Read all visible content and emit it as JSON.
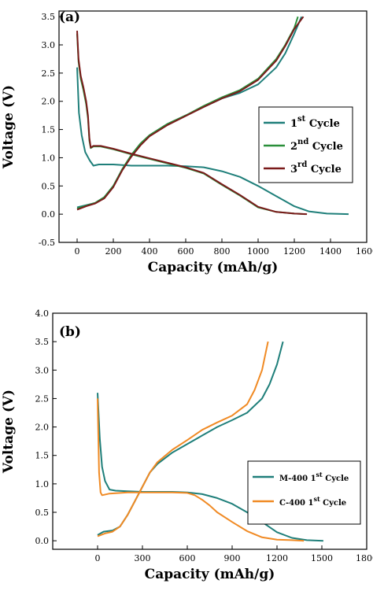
{
  "chart_data": [
    {
      "type": "line",
      "panel_label": "(a)",
      "xlabel": "Capacity (mAh/g)",
      "ylabel": "Voltage (V)",
      "xlim": [
        -100,
        1600
      ],
      "ylim": [
        -0.5,
        3.6
      ],
      "xticks": [
        "0",
        "200",
        "400",
        "600",
        "800",
        "1000",
        "1200",
        "1400",
        "1600"
      ],
      "yticks": [
        "-0.5",
        "0.0",
        "0.5",
        "1.0",
        "1.5",
        "2.0",
        "2.5",
        "3.0",
        "3.5"
      ],
      "legend_position": "center-right",
      "series": [
        {
          "name": "1st Cycle",
          "label_base": "1",
          "label_sup": "st",
          "label_rest": "Cycle",
          "color": "#1f7f7a",
          "discharge": [
            [
              0,
              2.6
            ],
            [
              10,
              1.8
            ],
            [
              25,
              1.4
            ],
            [
              45,
              1.1
            ],
            [
              70,
              0.95
            ],
            [
              90,
              0.86
            ],
            [
              120,
              0.88
            ],
            [
              200,
              0.88
            ],
            [
              300,
              0.86
            ],
            [
              400,
              0.86
            ],
            [
              500,
              0.86
            ],
            [
              600,
              0.85
            ],
            [
              700,
              0.83
            ],
            [
              800,
              0.76
            ],
            [
              900,
              0.66
            ],
            [
              1000,
              0.5
            ],
            [
              1100,
              0.32
            ],
            [
              1200,
              0.14
            ],
            [
              1280,
              0.05
            ],
            [
              1380,
              0.01
            ],
            [
              1500,
              0.0
            ]
          ],
          "charge": [
            [
              0,
              0.12
            ],
            [
              50,
              0.16
            ],
            [
              100,
              0.2
            ],
            [
              150,
              0.3
            ],
            [
              200,
              0.5
            ],
            [
              250,
              0.8
            ],
            [
              300,
              1.05
            ],
            [
              350,
              1.25
            ],
            [
              400,
              1.4
            ],
            [
              500,
              1.6
            ],
            [
              600,
              1.75
            ],
            [
              700,
              1.9
            ],
            [
              800,
              2.05
            ],
            [
              900,
              2.15
            ],
            [
              1000,
              2.3
            ],
            [
              1100,
              2.6
            ],
            [
              1150,
              2.85
            ],
            [
              1200,
              3.2
            ],
            [
              1240,
              3.5
            ]
          ]
        },
        {
          "name": "2nd Cycle",
          "label_base": "2",
          "label_sup": "nd",
          "label_rest": "Cycle",
          "color": "#2a8f3a",
          "discharge": [
            [
              0,
              3.2
            ],
            [
              8,
              2.7
            ],
            [
              20,
              2.4
            ],
            [
              35,
              2.2
            ],
            [
              50,
              1.95
            ],
            [
              60,
              1.7
            ],
            [
              68,
              1.3
            ],
            [
              75,
              1.17
            ],
            [
              90,
              1.2
            ],
            [
              130,
              1.2
            ],
            [
              200,
              1.15
            ],
            [
              300,
              1.06
            ],
            [
              400,
              0.98
            ],
            [
              500,
              0.9
            ],
            [
              600,
              0.82
            ],
            [
              700,
              0.72
            ],
            [
              800,
              0.52
            ],
            [
              900,
              0.33
            ],
            [
              1000,
              0.12
            ],
            [
              1100,
              0.04
            ],
            [
              1200,
              0.01
            ],
            [
              1260,
              0.0
            ]
          ],
          "charge": [
            [
              0,
              0.1
            ],
            [
              50,
              0.15
            ],
            [
              100,
              0.2
            ],
            [
              150,
              0.3
            ],
            [
              200,
              0.5
            ],
            [
              250,
              0.8
            ],
            [
              300,
              1.05
            ],
            [
              350,
              1.25
            ],
            [
              400,
              1.4
            ],
            [
              500,
              1.6
            ],
            [
              600,
              1.75
            ],
            [
              700,
              1.92
            ],
            [
              800,
              2.07
            ],
            [
              900,
              2.2
            ],
            [
              1000,
              2.4
            ],
            [
              1100,
              2.75
            ],
            [
              1150,
              3.0
            ],
            [
              1200,
              3.3
            ],
            [
              1220,
              3.5
            ]
          ]
        },
        {
          "name": "3rd Cycle",
          "label_base": "3",
          "label_sup": "rd",
          "label_rest": "Cycle",
          "color": "#7a1a1a",
          "discharge": [
            [
              0,
              3.25
            ],
            [
              8,
              2.75
            ],
            [
              20,
              2.45
            ],
            [
              35,
              2.25
            ],
            [
              50,
              2.0
            ],
            [
              60,
              1.75
            ],
            [
              68,
              1.35
            ],
            [
              75,
              1.18
            ],
            [
              90,
              1.21
            ],
            [
              130,
              1.21
            ],
            [
              200,
              1.16
            ],
            [
              300,
              1.07
            ],
            [
              400,
              0.99
            ],
            [
              500,
              0.91
            ],
            [
              600,
              0.83
            ],
            [
              700,
              0.73
            ],
            [
              800,
              0.53
            ],
            [
              900,
              0.34
            ],
            [
              1000,
              0.13
            ],
            [
              1100,
              0.04
            ],
            [
              1200,
              0.01
            ],
            [
              1270,
              0.0
            ]
          ],
          "charge": [
            [
              0,
              0.08
            ],
            [
              50,
              0.14
            ],
            [
              100,
              0.19
            ],
            [
              150,
              0.28
            ],
            [
              200,
              0.48
            ],
            [
              250,
              0.78
            ],
            [
              300,
              1.02
            ],
            [
              350,
              1.22
            ],
            [
              400,
              1.38
            ],
            [
              500,
              1.58
            ],
            [
              600,
              1.74
            ],
            [
              700,
              1.9
            ],
            [
              800,
              2.05
            ],
            [
              900,
              2.18
            ],
            [
              1000,
              2.38
            ],
            [
              1100,
              2.72
            ],
            [
              1150,
              2.98
            ],
            [
              1200,
              3.28
            ],
            [
              1250,
              3.5
            ]
          ]
        }
      ]
    },
    {
      "type": "line",
      "panel_label": "(b)",
      "xlabel": "Capacity (mAh/g)",
      "ylabel": "Voltage (V)",
      "xlim": [
        -300,
        1800
      ],
      "ylim": [
        -0.15,
        4.0
      ],
      "xticks": [
        "0",
        "300",
        "600",
        "900",
        "1200",
        "1500",
        "1800"
      ],
      "yticks": [
        "0.0",
        "0.5",
        "1.0",
        "1.5",
        "2.0",
        "2.5",
        "3.0",
        "3.5",
        "4.0"
      ],
      "legend_position": "lower-right",
      "series": [
        {
          "name": "M-400 1st Cycle",
          "label_base": "M-400 1",
          "label_sup": "st",
          "label_rest": "Cycle",
          "color": "#1f7f7a",
          "discharge": [
            [
              0,
              2.6
            ],
            [
              15,
              1.8
            ],
            [
              30,
              1.3
            ],
            [
              50,
              1.05
            ],
            [
              80,
              0.9
            ],
            [
              120,
              0.88
            ],
            [
              200,
              0.87
            ],
            [
              300,
              0.86
            ],
            [
              400,
              0.86
            ],
            [
              500,
              0.86
            ],
            [
              600,
              0.85
            ],
            [
              700,
              0.82
            ],
            [
              800,
              0.75
            ],
            [
              900,
              0.65
            ],
            [
              1000,
              0.5
            ],
            [
              1100,
              0.33
            ],
            [
              1200,
              0.15
            ],
            [
              1300,
              0.05
            ],
            [
              1400,
              0.01
            ],
            [
              1510,
              0.0
            ]
          ],
          "charge": [
            [
              0,
              0.1
            ],
            [
              40,
              0.16
            ],
            [
              100,
              0.18
            ],
            [
              150,
              0.25
            ],
            [
              200,
              0.45
            ],
            [
              250,
              0.7
            ],
            [
              300,
              0.95
            ],
            [
              350,
              1.2
            ],
            [
              400,
              1.35
            ],
            [
              500,
              1.55
            ],
            [
              600,
              1.7
            ],
            [
              700,
              1.85
            ],
            [
              800,
              2.0
            ],
            [
              900,
              2.12
            ],
            [
              1000,
              2.25
            ],
            [
              1100,
              2.5
            ],
            [
              1150,
              2.75
            ],
            [
              1200,
              3.1
            ],
            [
              1240,
              3.5
            ]
          ]
        },
        {
          "name": "C-400 1st Cycle",
          "label_base": "C-400 1",
          "label_sup": "st",
          "label_rest": "Cycle",
          "color": "#f08a24",
          "discharge": [
            [
              0,
              2.5
            ],
            [
              5,
              1.8
            ],
            [
              10,
              1.2
            ],
            [
              20,
              0.85
            ],
            [
              30,
              0.8
            ],
            [
              80,
              0.83
            ],
            [
              200,
              0.85
            ],
            [
              300,
              0.85
            ],
            [
              400,
              0.85
            ],
            [
              500,
              0.85
            ],
            [
              600,
              0.84
            ],
            [
              650,
              0.8
            ],
            [
              700,
              0.72
            ],
            [
              750,
              0.62
            ],
            [
              800,
              0.5
            ],
            [
              900,
              0.33
            ],
            [
              1000,
              0.17
            ],
            [
              1100,
              0.06
            ],
            [
              1200,
              0.02
            ],
            [
              1300,
              0.01
            ],
            [
              1380,
              0.0
            ]
          ],
          "charge": [
            [
              0,
              0.08
            ],
            [
              50,
              0.13
            ],
            [
              100,
              0.16
            ],
            [
              150,
              0.25
            ],
            [
              200,
              0.45
            ],
            [
              250,
              0.7
            ],
            [
              300,
              0.95
            ],
            [
              350,
              1.2
            ],
            [
              400,
              1.38
            ],
            [
              500,
              1.6
            ],
            [
              600,
              1.77
            ],
            [
              700,
              1.95
            ],
            [
              800,
              2.08
            ],
            [
              900,
              2.2
            ],
            [
              1000,
              2.4
            ],
            [
              1050,
              2.65
            ],
            [
              1100,
              3.0
            ],
            [
              1140,
              3.5
            ]
          ]
        }
      ]
    }
  ]
}
